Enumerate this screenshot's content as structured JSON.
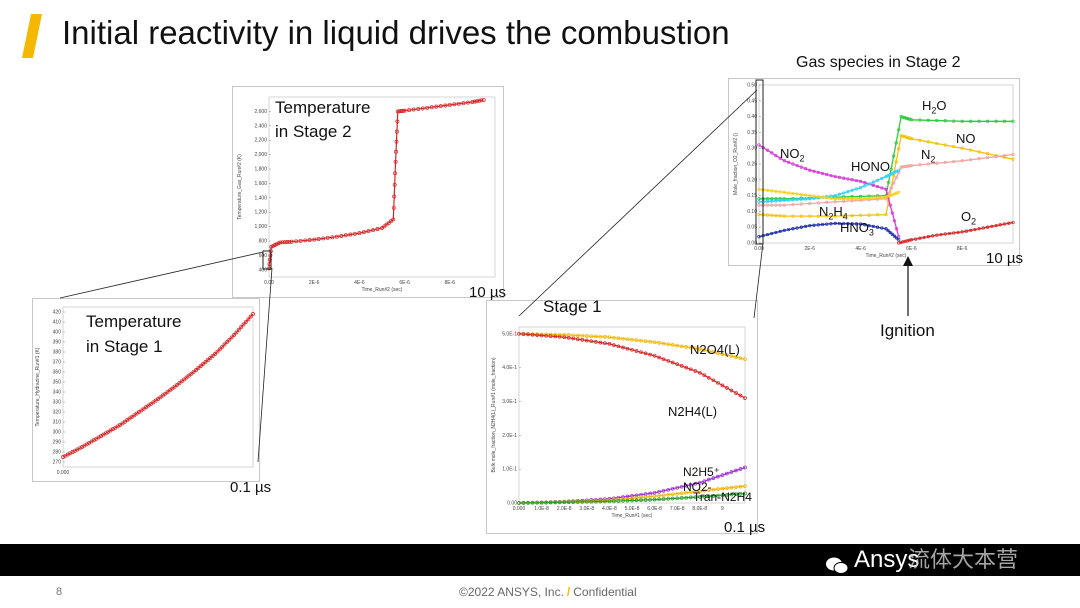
{
  "slide": {
    "title": "Initial reactivity in liquid drives the combustion",
    "page_number": "8",
    "copyright": "©2022 ANSYS, Inc.",
    "confidential": "Confidential",
    "brand": "Ansys",
    "watermark": "流体大本营",
    "accent_color": "#f5b800"
  },
  "plots": {
    "temp_stage2": {
      "label_line1": "Temperature",
      "label_line2": "in Stage 2",
      "time_label": "10 µs",
      "ylabel": "Temperature_Gas_Run#2 (K)",
      "xlabel": "Time_Run#2 (sec)",
      "yticks": [
        "400",
        "600",
        "800",
        "1,000",
        "1,200",
        "1,400",
        "1,600",
        "1,800",
        "2,000",
        "2,200",
        "2,400",
        "2,600"
      ],
      "xticks": [
        "0.00",
        "2E-6",
        "4E-6",
        "6E-6",
        "8E-6"
      ]
    },
    "temp_stage1": {
      "label_line1": "Temperature",
      "label_line2": "in Stage 1",
      "time_label": "0.1 µs",
      "ylabel": "Temperature_Hydrazine_Run#1 (K)",
      "yticks": [
        "270",
        "280",
        "290",
        "300",
        "310",
        "320",
        "330",
        "340",
        "350",
        "360",
        "370",
        "380",
        "390",
        "400",
        "410",
        "420"
      ],
      "xticks": [
        "0.000"
      ]
    },
    "stage1_liquid": {
      "label": "Stage 1",
      "time_label": "0.1 µs",
      "ylabel": "Bulk.mole_fraction_N2H4(L)_Run#1 (mole_fraction)",
      "xlabel": "Time_Run#1 (sec)",
      "yticks": [
        "5.0E-1",
        "4.0E-1",
        "3.0E-1",
        "2.0E-1",
        "1.0E-1",
        "0.00"
      ],
      "xticks": [
        "0.000",
        "1.0E-8",
        "2.0E-8",
        "3.0E-8",
        "4.0E-8",
        "5.0E-8",
        "6.0E-8",
        "7.0E-8",
        "8.0E-8",
        "9"
      ],
      "species": {
        "n2o4": "N2O4(L)",
        "n2h4": "N2H4(L)",
        "n2h5": "N2H5⁺",
        "no2m": "NO2-",
        "tran": "Tran-N2H4"
      }
    },
    "gas_stage2": {
      "label": "Gas species in Stage 2",
      "time_label": "10 µs",
      "ylabel": "Mole_fraction_O2_Run#2 ()",
      "xlabel": "Time_Run#2 (sec)",
      "yticks": [
        "0.50",
        "0.45",
        "0.40",
        "0.35",
        "0.30",
        "0.25",
        "0.20",
        "0.15",
        "0.10",
        "0.05",
        "0.00"
      ],
      "xticks": [
        "0.00",
        "2E-6",
        "4E-6",
        "6E-6",
        "8E-6"
      ],
      "ignition_label": "Ignition"
    }
  },
  "chart_data": [
    {
      "type": "line",
      "ylabel": "Temperature_Gas_Run#2 (K)",
      "xlabel": "Time_Run#2 (sec)",
      "ylim": [
        300,
        2800
      ],
      "xlim": [
        0,
        1e-05
      ],
      "series": [
        {
          "color": "#d62728",
          "x": [
            0,
            1e-07,
            5e-07,
            1e-06,
            2e-06,
            3e-06,
            4e-06,
            5e-06,
            5.5e-06,
            5.6e-06,
            5.7e-06,
            6e-06,
            7e-06,
            8e-06,
            9e-06,
            9.5e-06
          ],
          "y": [
            420,
            720,
            780,
            790,
            820,
            860,
            910,
            980,
            1100,
            1900,
            2600,
            2610,
            2650,
            2690,
            2730,
            2760
          ]
        }
      ]
    },
    {
      "type": "line",
      "ylabel": "Temperature_Hydrazine_Run#1 (K)",
      "ylim": [
        265,
        425
      ],
      "xlim": [
        0,
        1e-07
      ],
      "series": [
        {
          "color": "#d62728",
          "x": [
            0,
            1e-08,
            2e-08,
            3e-08,
            4e-08,
            5e-08,
            6e-08,
            7e-08,
            8e-08,
            9e-08,
            1e-07
          ],
          "y": [
            275,
            285,
            296,
            307,
            320,
            333,
            347,
            362,
            378,
            397,
            418
          ]
        }
      ]
    },
    {
      "type": "line",
      "ylabel": "Bulk.mole_fraction_N2H4(L)_Run#1 (mole_fraction)",
      "xlabel": "Time_Run#1 (sec)",
      "ylim": [
        0,
        0.52
      ],
      "xlim": [
        0,
        1e-07
      ],
      "series": [
        {
          "name": "N2O4(L)",
          "color": "#f2b705",
          "x": [
            0,
            2e-08,
            4e-08,
            6e-08,
            8e-08,
            1e-07
          ],
          "y": [
            0.5,
            0.497,
            0.49,
            0.475,
            0.455,
            0.425
          ]
        },
        {
          "name": "N2H4(L)",
          "color": "#d62728",
          "x": [
            0,
            2e-08,
            4e-08,
            6e-08,
            8e-08,
            1e-07
          ],
          "y": [
            0.5,
            0.49,
            0.47,
            0.435,
            0.385,
            0.31
          ]
        },
        {
          "name": "N2H5⁺",
          "color": "#9b2fd6",
          "x": [
            0,
            2e-08,
            4e-08,
            6e-08,
            8e-08,
            1e-07
          ],
          "y": [
            0.0,
            0.004,
            0.012,
            0.03,
            0.06,
            0.105
          ]
        },
        {
          "name": "NO2-",
          "color": "#f2b705",
          "x": [
            0,
            2e-08,
            4e-08,
            6e-08,
            8e-08,
            1e-07
          ],
          "y": [
            0.0,
            0.003,
            0.008,
            0.02,
            0.035,
            0.05
          ]
        },
        {
          "name": "Tran-N2H4",
          "color": "#2aa02a",
          "x": [
            0,
            2e-08,
            4e-08,
            6e-08,
            8e-08,
            1e-07
          ],
          "y": [
            0.0,
            0.002,
            0.005,
            0.01,
            0.018,
            0.028
          ]
        }
      ]
    },
    {
      "type": "line",
      "ylabel": "Mole_fraction_O2_Run#2 ()",
      "xlabel": "Time_Run#2 (sec)",
      "ylim": [
        0,
        0.5
      ],
      "xlim": [
        0,
        1e-05
      ],
      "series": [
        {
          "name": "H₂O",
          "color": "#2ecc40",
          "x": [
            0,
            1e-06,
            3e-06,
            5e-06,
            5.6e-06,
            6e-06,
            8e-06,
            1e-05
          ],
          "y": [
            0.14,
            0.14,
            0.145,
            0.15,
            0.4,
            0.39,
            0.385,
            0.385
          ]
        },
        {
          "name": "NO",
          "color": "#f2c20a",
          "x": [
            0,
            1e-06,
            3e-06,
            5e-06,
            5.6e-06,
            6e-06,
            8e-06,
            1e-05
          ],
          "y": [
            0.09,
            0.085,
            0.085,
            0.09,
            0.34,
            0.33,
            0.3,
            0.265
          ]
        },
        {
          "name": "N₂",
          "color": "#f2a4a4",
          "x": [
            0,
            1e-06,
            3e-06,
            5e-06,
            5.6e-06,
            6e-06,
            8e-06,
            1e-05
          ],
          "y": [
            0.12,
            0.12,
            0.13,
            0.14,
            0.24,
            0.245,
            0.26,
            0.28
          ]
        },
        {
          "name": "NO₂",
          "color": "#d63ad6",
          "x": [
            0,
            1e-06,
            2e-06,
            3e-06,
            4e-06,
            5e-06,
            5.5e-06
          ],
          "y": [
            0.31,
            0.26,
            0.23,
            0.21,
            0.195,
            0.17,
            0.02
          ]
        },
        {
          "name": "HONO",
          "color": "#2fd3f5",
          "x": [
            0,
            1e-06,
            2e-06,
            3e-06,
            4e-06,
            5e-06,
            5.5e-06
          ],
          "y": [
            0.13,
            0.135,
            0.14,
            0.15,
            0.175,
            0.21,
            0.23
          ]
        },
        {
          "name": "N₂H₄",
          "color": "#f5d020",
          "x": [
            0,
            1e-06,
            2e-06,
            3e-06,
            4e-06,
            5e-06,
            5.5e-06
          ],
          "y": [
            0.17,
            0.16,
            0.15,
            0.14,
            0.14,
            0.145,
            0.16
          ]
        },
        {
          "name": "HNO₃",
          "color": "#2233aa",
          "x": [
            0,
            1e-06,
            2e-06,
            3e-06,
            4e-06,
            5e-06,
            5.5e-06
          ],
          "y": [
            0.02,
            0.04,
            0.055,
            0.062,
            0.06,
            0.045,
            0.01
          ]
        },
        {
          "name": "O₂",
          "color": "#d62728",
          "x": [
            5.5e-06,
            6e-06,
            7e-06,
            8e-06,
            9e-06,
            1e-05
          ],
          "y": [
            0.0,
            0.01,
            0.025,
            0.035,
            0.05,
            0.065
          ]
        }
      ]
    }
  ]
}
